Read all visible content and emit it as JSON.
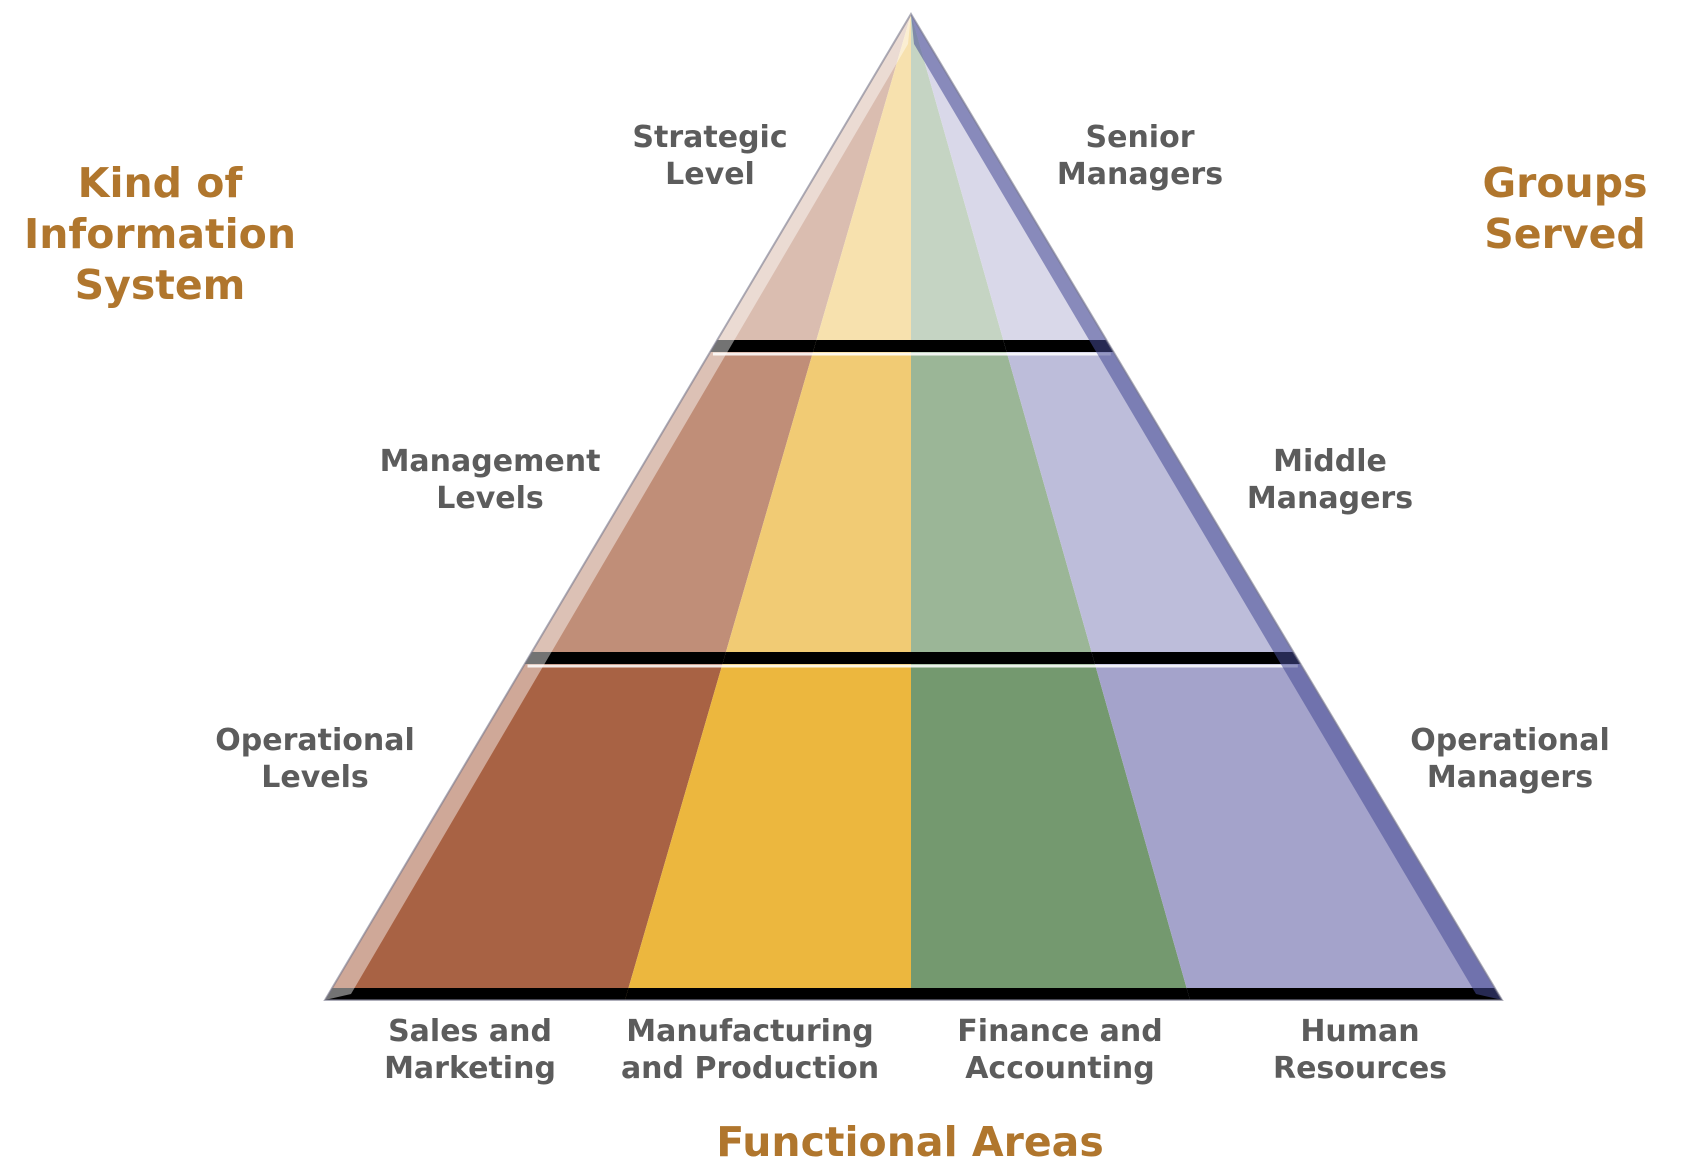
{
  "headings": {
    "left": "Kind of\nInformation\nSystem",
    "right": "Groups\nServed",
    "bottom": "Functional Areas"
  },
  "levels": [
    {
      "name": "Strategic\nLevel",
      "group": "Senior\nManagers"
    },
    {
      "name": "Management\nLevels",
      "group": "Middle\nManagers"
    },
    {
      "name": "Operational\nLevels",
      "group": "Operational\nManagers"
    }
  ],
  "functional_areas": [
    {
      "label": "Sales and\nMarketing",
      "color": "#a86244"
    },
    {
      "label": "Manufacturing\nand Production",
      "color": "#ecb73e"
    },
    {
      "label": "Finance and\nAccounting",
      "color": "#74996f"
    },
    {
      "label": "Human\nResources",
      "color": "#a4a3cb"
    }
  ],
  "colors": {
    "heading": "#b0762d",
    "label": "#5c5c5c"
  }
}
